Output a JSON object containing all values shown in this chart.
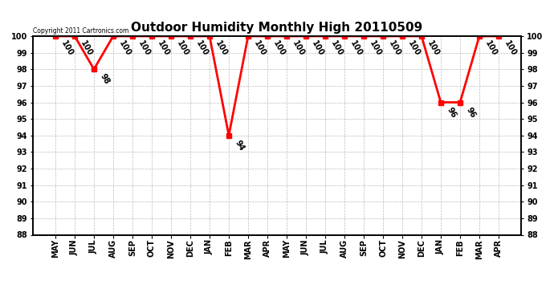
{
  "title": "Outdoor Humidity Monthly High 20110509",
  "copyright_text": "Copyright 2011 Cartronics.com",
  "x_labels": [
    "MAY",
    "JUN",
    "JUL",
    "AUG",
    "SEP",
    "OCT",
    "NOV",
    "DEC",
    "JAN",
    "FEB",
    "MAR",
    "APR",
    "MAY",
    "JUN",
    "JUL",
    "AUG",
    "SEP",
    "OCT",
    "NOV",
    "DEC",
    "JAN",
    "FEB",
    "MAR",
    "APR"
  ],
  "y_values": [
    100,
    100,
    98,
    100,
    100,
    100,
    100,
    100,
    100,
    94,
    100,
    100,
    100,
    100,
    100,
    100,
    100,
    100,
    100,
    100,
    96,
    96,
    100,
    100
  ],
  "ylim_min": 88,
  "ylim_max": 100,
  "line_color": "red",
  "marker": "s",
  "marker_color": "red",
  "marker_size": 4,
  "bg_color": "white",
  "grid_color": "#bbbbbb",
  "title_fontsize": 11,
  "label_fontsize": 7,
  "annot_fontsize": 7,
  "figwidth": 6.9,
  "figheight": 3.75,
  "dpi": 100
}
